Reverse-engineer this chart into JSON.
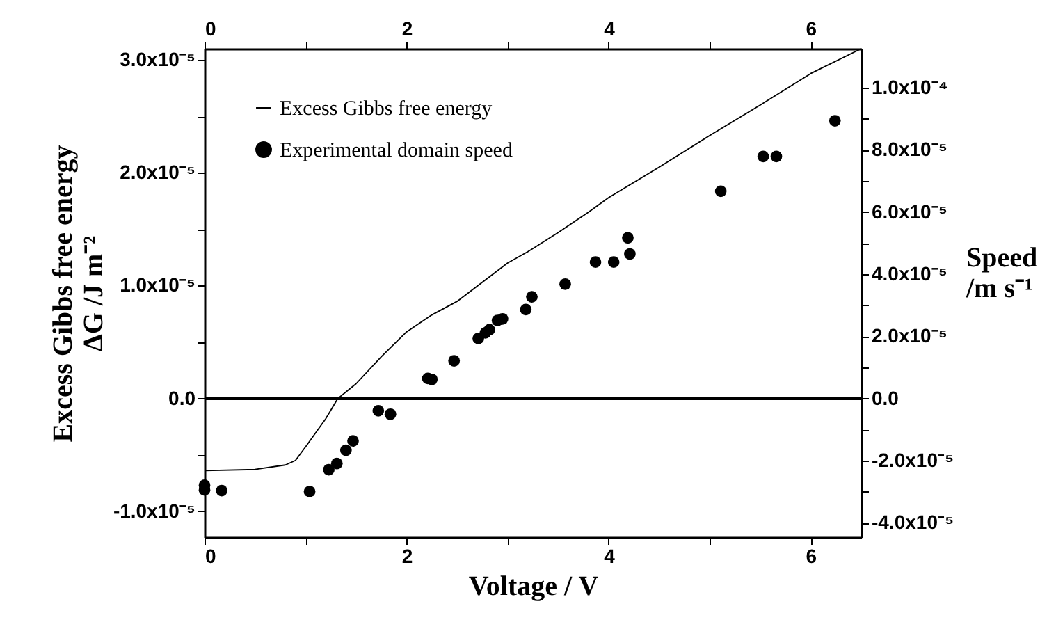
{
  "chart_data": {
    "type": "line",
    "xlabel": "Voltage / V",
    "ylabel": "Excess Gibbs free energy\nΔG /J m⁻²",
    "y2label": "Speed\n/m s⁻¹",
    "xlim": [
      0,
      6.5
    ],
    "xticks": [
      0,
      {
        "value": 1,
        "label": null
      },
      2,
      {
        "value": 3,
        "label": null
      },
      4,
      {
        "value": 5,
        "label": null
      },
      6
    ],
    "x2lim": [
      0,
      6.5
    ],
    "x2ticks": [
      0,
      {
        "value": 1,
        "label": null
      },
      2,
      {
        "value": 3,
        "label": null
      },
      4,
      {
        "value": 5,
        "label": null
      },
      6
    ],
    "ylim": [
      -1.23e-05,
      3.1e-05
    ],
    "yticks": [
      {
        "value": -1e-05,
        "label": "-1.0x10⁻⁵"
      },
      {
        "value": -5e-06,
        "label": null
      },
      {
        "value": 0,
        "label": "0.0"
      },
      {
        "value": 5e-06,
        "label": null
      },
      {
        "value": 1e-05,
        "label": "1.0x10⁻⁵"
      },
      {
        "value": 1.5e-05,
        "label": null
      },
      {
        "value": 2e-05,
        "label": "2.0x10⁻⁵"
      },
      {
        "value": 2.5e-05,
        "label": null
      },
      {
        "value": 3e-05,
        "label": "3.0x10⁻⁵"
      }
    ],
    "y2lim": [
      -4.47e-05,
      0.0001126
    ],
    "y2ticks": [
      {
        "value": -4e-05,
        "label": "-4.0x10⁻⁵"
      },
      {
        "value": -3e-05,
        "label": null
      },
      {
        "value": -2e-05,
        "label": "-2.0x10⁻⁵"
      },
      {
        "value": -1e-05,
        "label": null
      },
      {
        "value": 0,
        "label": "0.0"
      },
      {
        "value": 1e-05,
        "label": null
      },
      {
        "value": 2e-05,
        "label": "2.0x10⁻⁵"
      },
      {
        "value": 3e-05,
        "label": null
      },
      {
        "value": 4e-05,
        "label": "4.0x10⁻⁵"
      },
      {
        "value": 5e-05,
        "label": null
      },
      {
        "value": 6e-05,
        "label": "6.0x10⁻⁵"
      },
      {
        "value": 7e-05,
        "label": null
      },
      {
        "value": 8e-05,
        "label": "8.0x10⁻⁵"
      },
      {
        "value": 9e-05,
        "label": null
      },
      {
        "value": 0.0001,
        "label": "1.0x10⁻⁴"
      }
    ],
    "legend": "top left",
    "grid": false,
    "ref_lines": [
      {
        "axis": "y",
        "value": 0,
        "color": "#000000"
      }
    ],
    "series": [
      {
        "name": "Excess Gibbs free energy",
        "marker": "none",
        "color": "#000000",
        "x": [
          0,
          0.5,
          0.8,
          0.9,
          1.0,
          1.2,
          1.32,
          1.5,
          1.75,
          2.0,
          2.25,
          2.5,
          3.0,
          3.2,
          3.5,
          3.8,
          4.0,
          4.5,
          5.0,
          5.5,
          6.0,
          6.5
        ],
        "values": [
          -6.4e-06,
          -6.3e-06,
          -5.9e-06,
          -5.5e-06,
          -4.3e-06,
          -1.8e-06,
          0,
          1.3e-06,
          3.7e-06,
          5.9e-06,
          7.4e-06,
          8.6e-06,
          1.2e-05,
          1.3e-05,
          1.47e-05,
          1.65e-05,
          1.78e-05,
          2.05e-05,
          2.33e-05,
          2.6e-05,
          2.88e-05,
          3.1e-05
        ]
      },
      {
        "name": "Experimental domain speed",
        "type": "scatter",
        "marker": "circle",
        "axis": "y2",
        "color": "#000000",
        "x": [
          0,
          0,
          0.17,
          1.04,
          1.23,
          1.31,
          1.4,
          1.47,
          1.72,
          1.84,
          2.21,
          2.25,
          2.47,
          2.71,
          2.78,
          2.82,
          2.9,
          2.95,
          3.18,
          3.24,
          3.57,
          3.87,
          4.05,
          4.19,
          4.21,
          5.11,
          5.53,
          5.66,
          6.24
        ],
        "values": [
          -2.8e-05,
          -2.95e-05,
          -2.97e-05,
          -3e-05,
          -2.3e-05,
          -2.1e-05,
          -1.67e-05,
          -1.37e-05,
          -4e-06,
          -5.1e-06,
          6.4e-06,
          6.1e-06,
          1.21e-05,
          1.93e-05,
          2.11e-05,
          2.21e-05,
          2.51e-05,
          2.56e-05,
          2.86e-05,
          3.27e-05,
          3.68e-05,
          4.39e-05,
          4.39e-05,
          5.17e-05,
          4.65e-05,
          6.67e-05,
          7.79e-05,
          7.79e-05,
          8.94e-05
        ]
      }
    ]
  }
}
